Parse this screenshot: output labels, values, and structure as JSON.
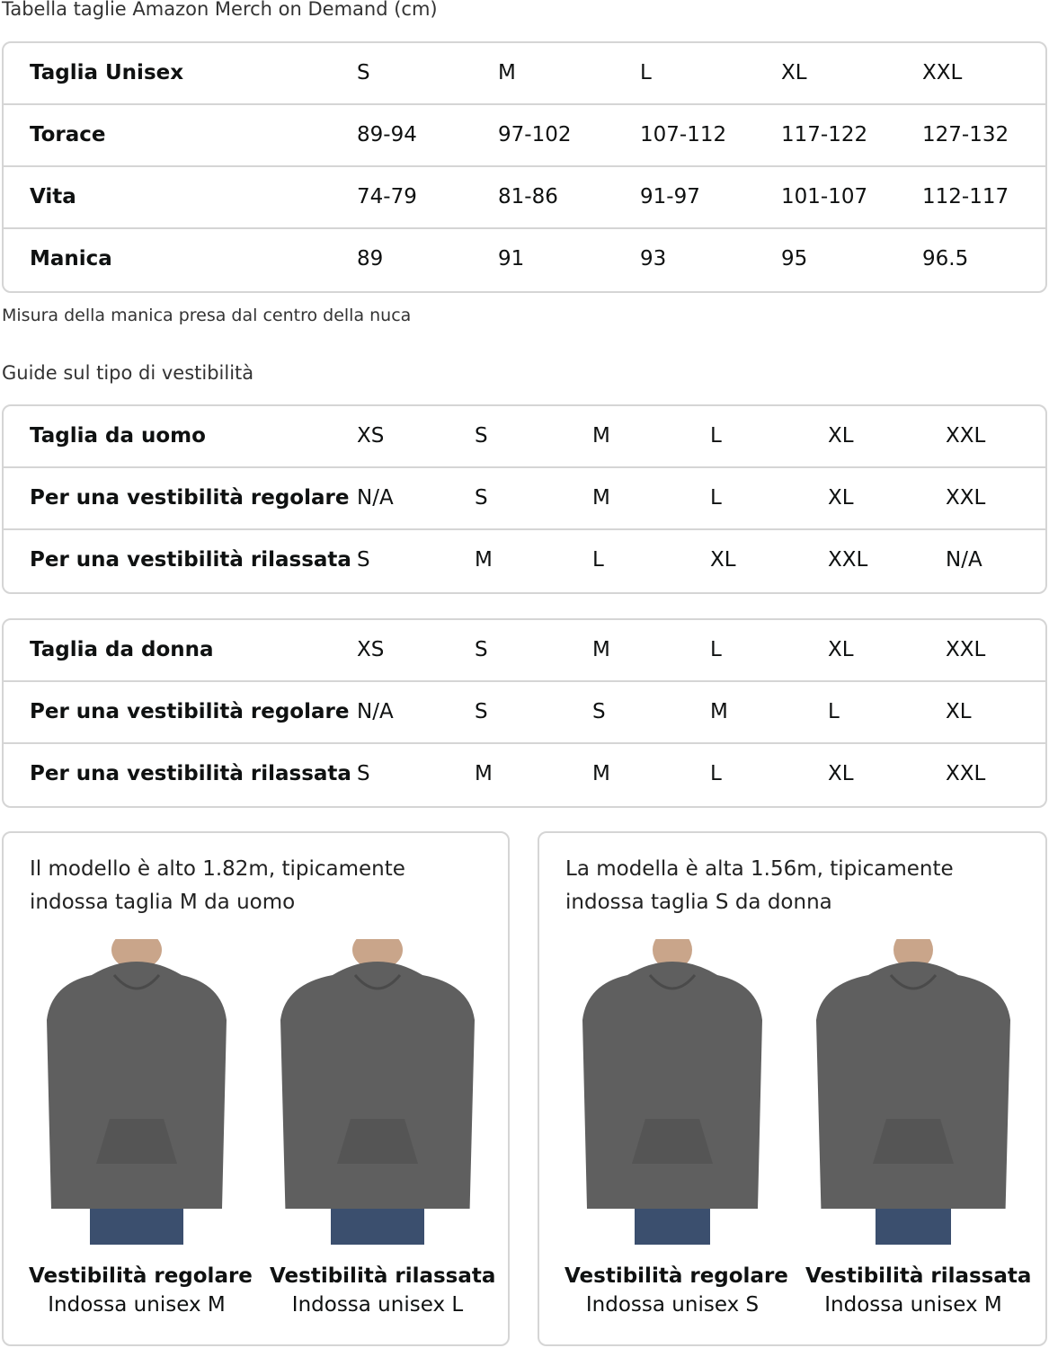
{
  "title": "Tabella taglie Amazon Merch on Demand (cm)",
  "unisex_table": {
    "rows": [
      [
        "Taglia Unisex",
        "S",
        "M",
        "L",
        "XL",
        "XXL"
      ],
      [
        "Torace",
        "89-94",
        "97-102",
        "107-112",
        "117-122",
        "127-132"
      ],
      [
        "Vita",
        "74-79",
        "81-86",
        "91-97",
        "101-107",
        "112-117"
      ],
      [
        "Manica",
        "89",
        "91",
        "93",
        "95",
        "96.5"
      ]
    ]
  },
  "sleeve_note": "Misura della manica presa dal centro della nuca",
  "fit_guide_title": "Guide sul tipo di vestibilità",
  "men_table": {
    "rows": [
      [
        "Taglia da uomo",
        "XS",
        "S",
        "M",
        "L",
        "XL",
        "XXL"
      ],
      [
        "Per una vestibilità regolare",
        "N/A",
        "S",
        "M",
        "L",
        "XL",
        "XXL"
      ],
      [
        "Per una vestibilità rilassata",
        "S",
        "M",
        "L",
        "XL",
        "XXL",
        "N/A"
      ]
    ]
  },
  "women_table": {
    "rows": [
      [
        "Taglia da donna",
        "XS",
        "S",
        "M",
        "L",
        "XL",
        "XXL"
      ],
      [
        "Per una vestibilità regolare",
        "N/A",
        "S",
        "S",
        "M",
        "L",
        "XL"
      ],
      [
        "Per una vestibilità rilassata",
        "S",
        "M",
        "M",
        "L",
        "XL",
        "XXL"
      ]
    ]
  },
  "cards": [
    {
      "desc": "Il modello è alto 1.82m, tipicamente indossa taglia M da uomo",
      "figures": [
        {
          "title": "Vestibilità regolare",
          "sub": "Indossa unisex M"
        },
        {
          "title": "Vestibilità rilassata",
          "sub": "Indossa unisex L"
        }
      ]
    },
    {
      "desc": "La modella è alta 1.56m, tipicamente indossa taglia S da donna",
      "figures": [
        {
          "title": "Vestibilità regolare",
          "sub": "Indossa unisex S"
        },
        {
          "title": "Vestibilità rilassata",
          "sub": "Indossa unisex M"
        }
      ]
    }
  ],
  "colors": {
    "border": "#d5d5d5",
    "hoodie": "#5f5f5f",
    "jeans": "#3b4f6e"
  }
}
